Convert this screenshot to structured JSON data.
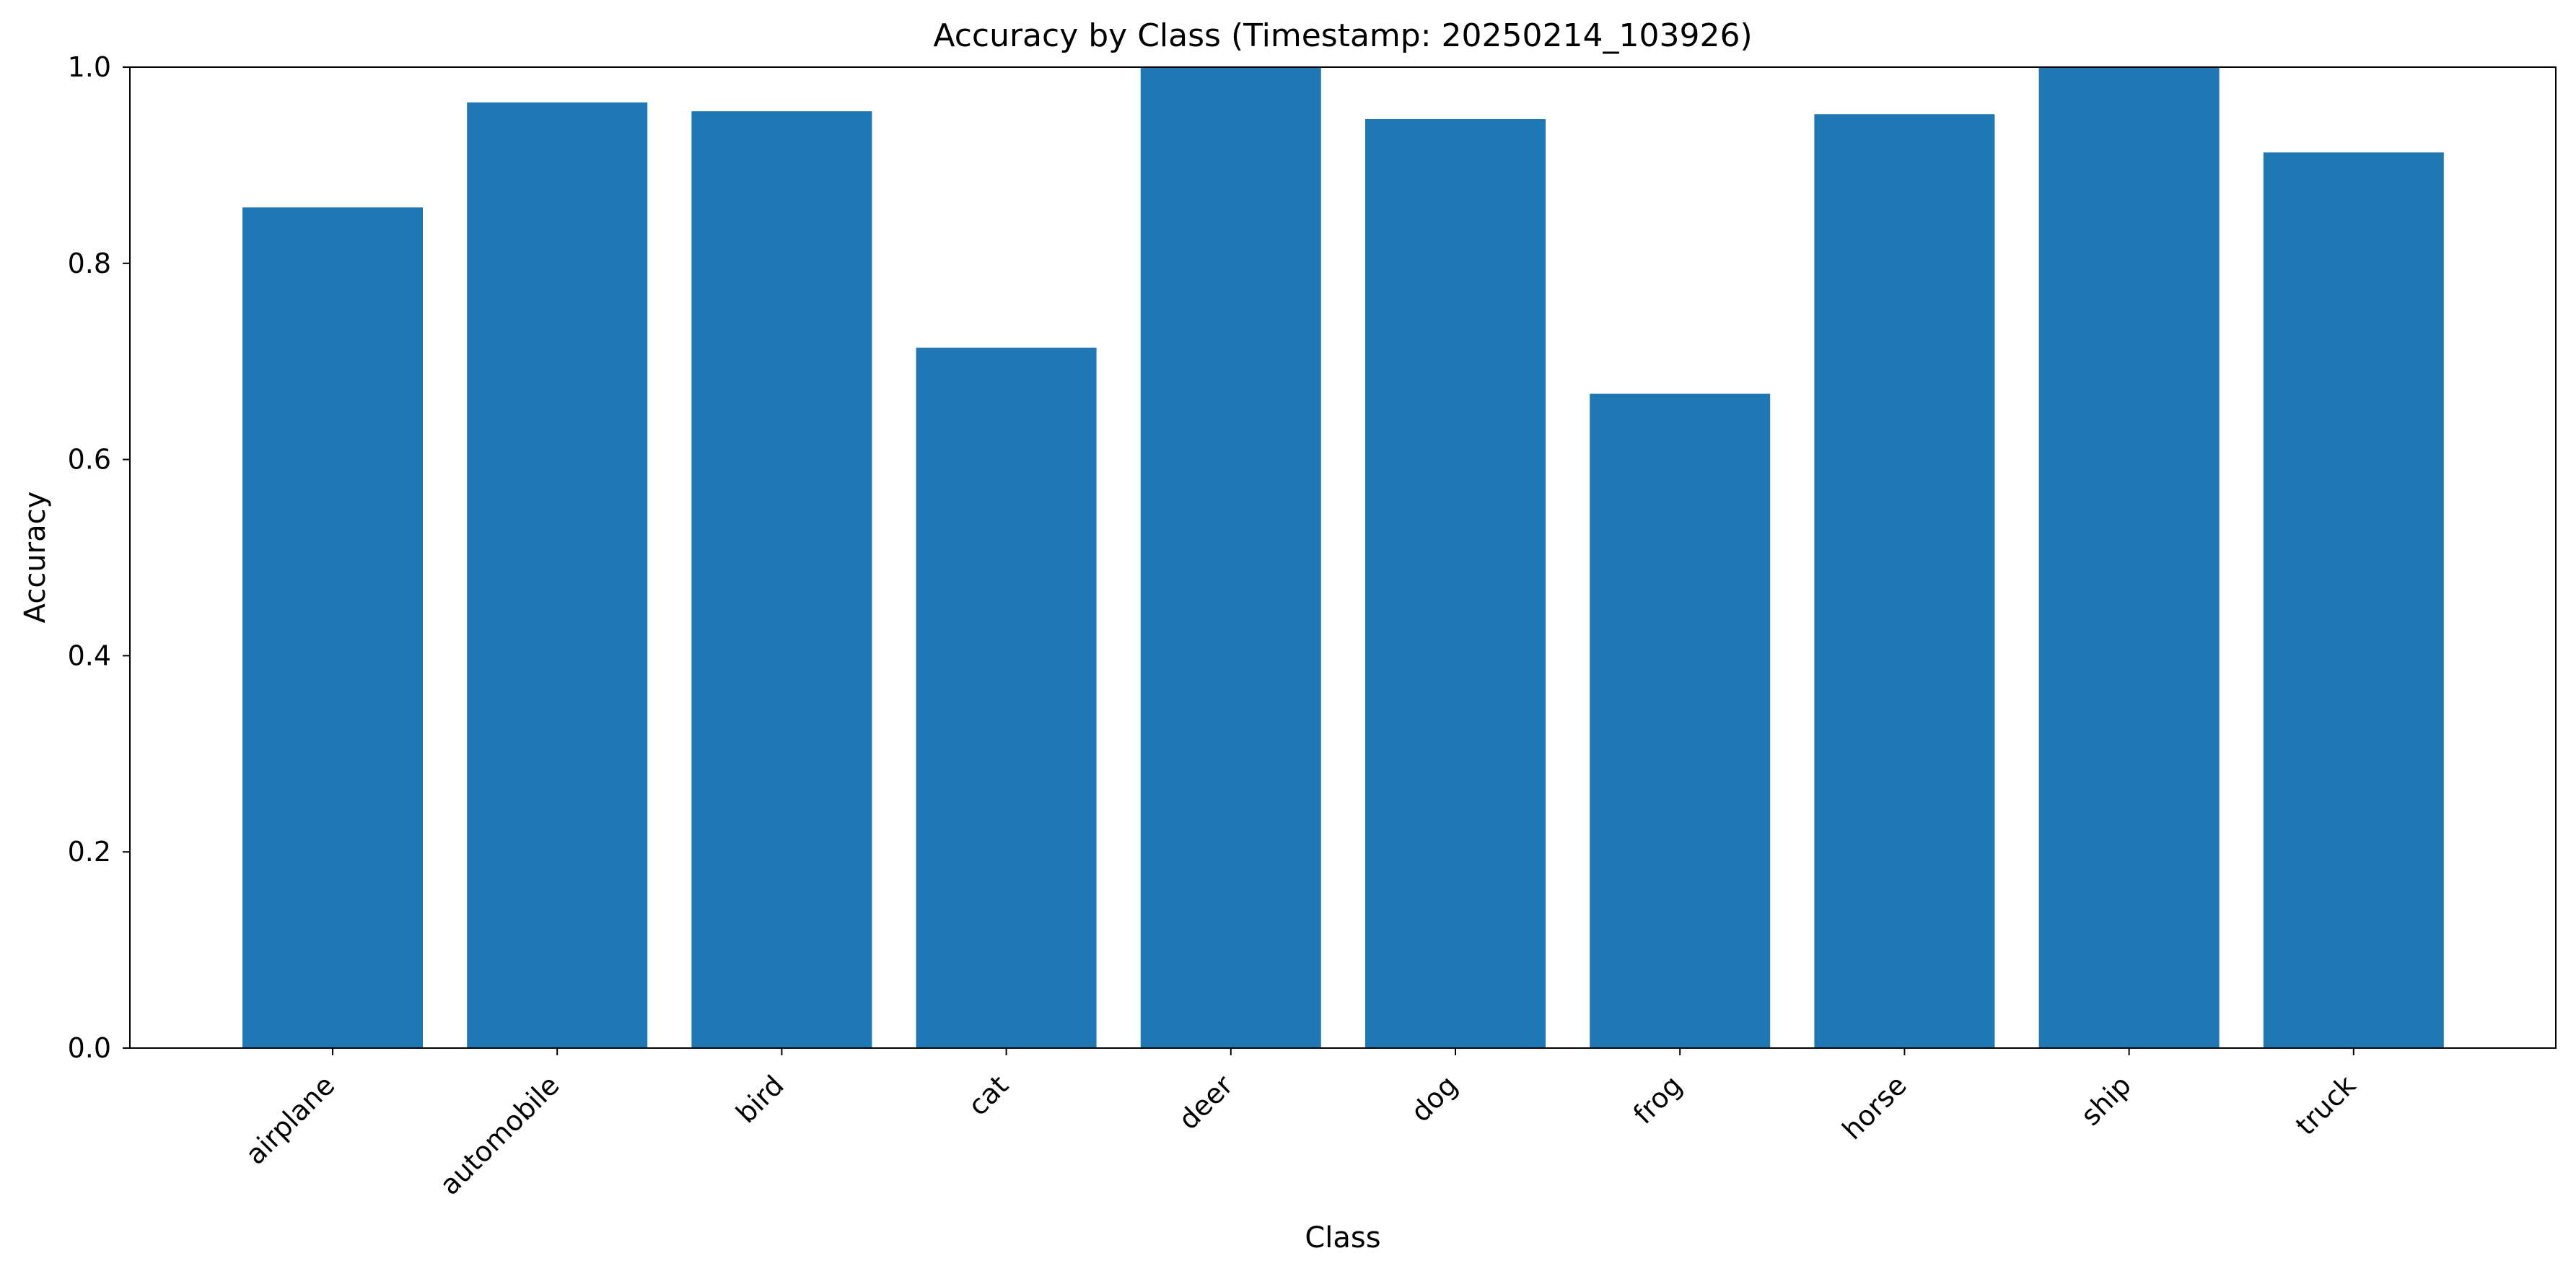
{
  "chart_data": {
    "type": "bar",
    "title": "Accuracy by Class (Timestamp: 20250214_103926)",
    "xlabel": "Class",
    "ylabel": "Accuracy",
    "categories": [
      "airplane",
      "automobile",
      "bird",
      "cat",
      "deer",
      "dog",
      "frog",
      "horse",
      "ship",
      "truck"
    ],
    "values": [
      0.857,
      0.964,
      0.955,
      0.714,
      1.0,
      0.947,
      0.667,
      0.952,
      1.0,
      0.913
    ],
    "ylim": [
      0,
      1.0
    ],
    "yticks": [
      0.0,
      0.2,
      0.4,
      0.6,
      0.8,
      1.0
    ],
    "ytick_labels": [
      "0.0",
      "0.2",
      "0.4",
      "0.6",
      "0.8",
      "1.0"
    ],
    "xtick_rotation_deg": 45,
    "grid": false,
    "legend": "none",
    "colors": {
      "bar": "#1f77b4",
      "axis": "#000000",
      "text": "#000000",
      "background": "#ffffff"
    }
  }
}
